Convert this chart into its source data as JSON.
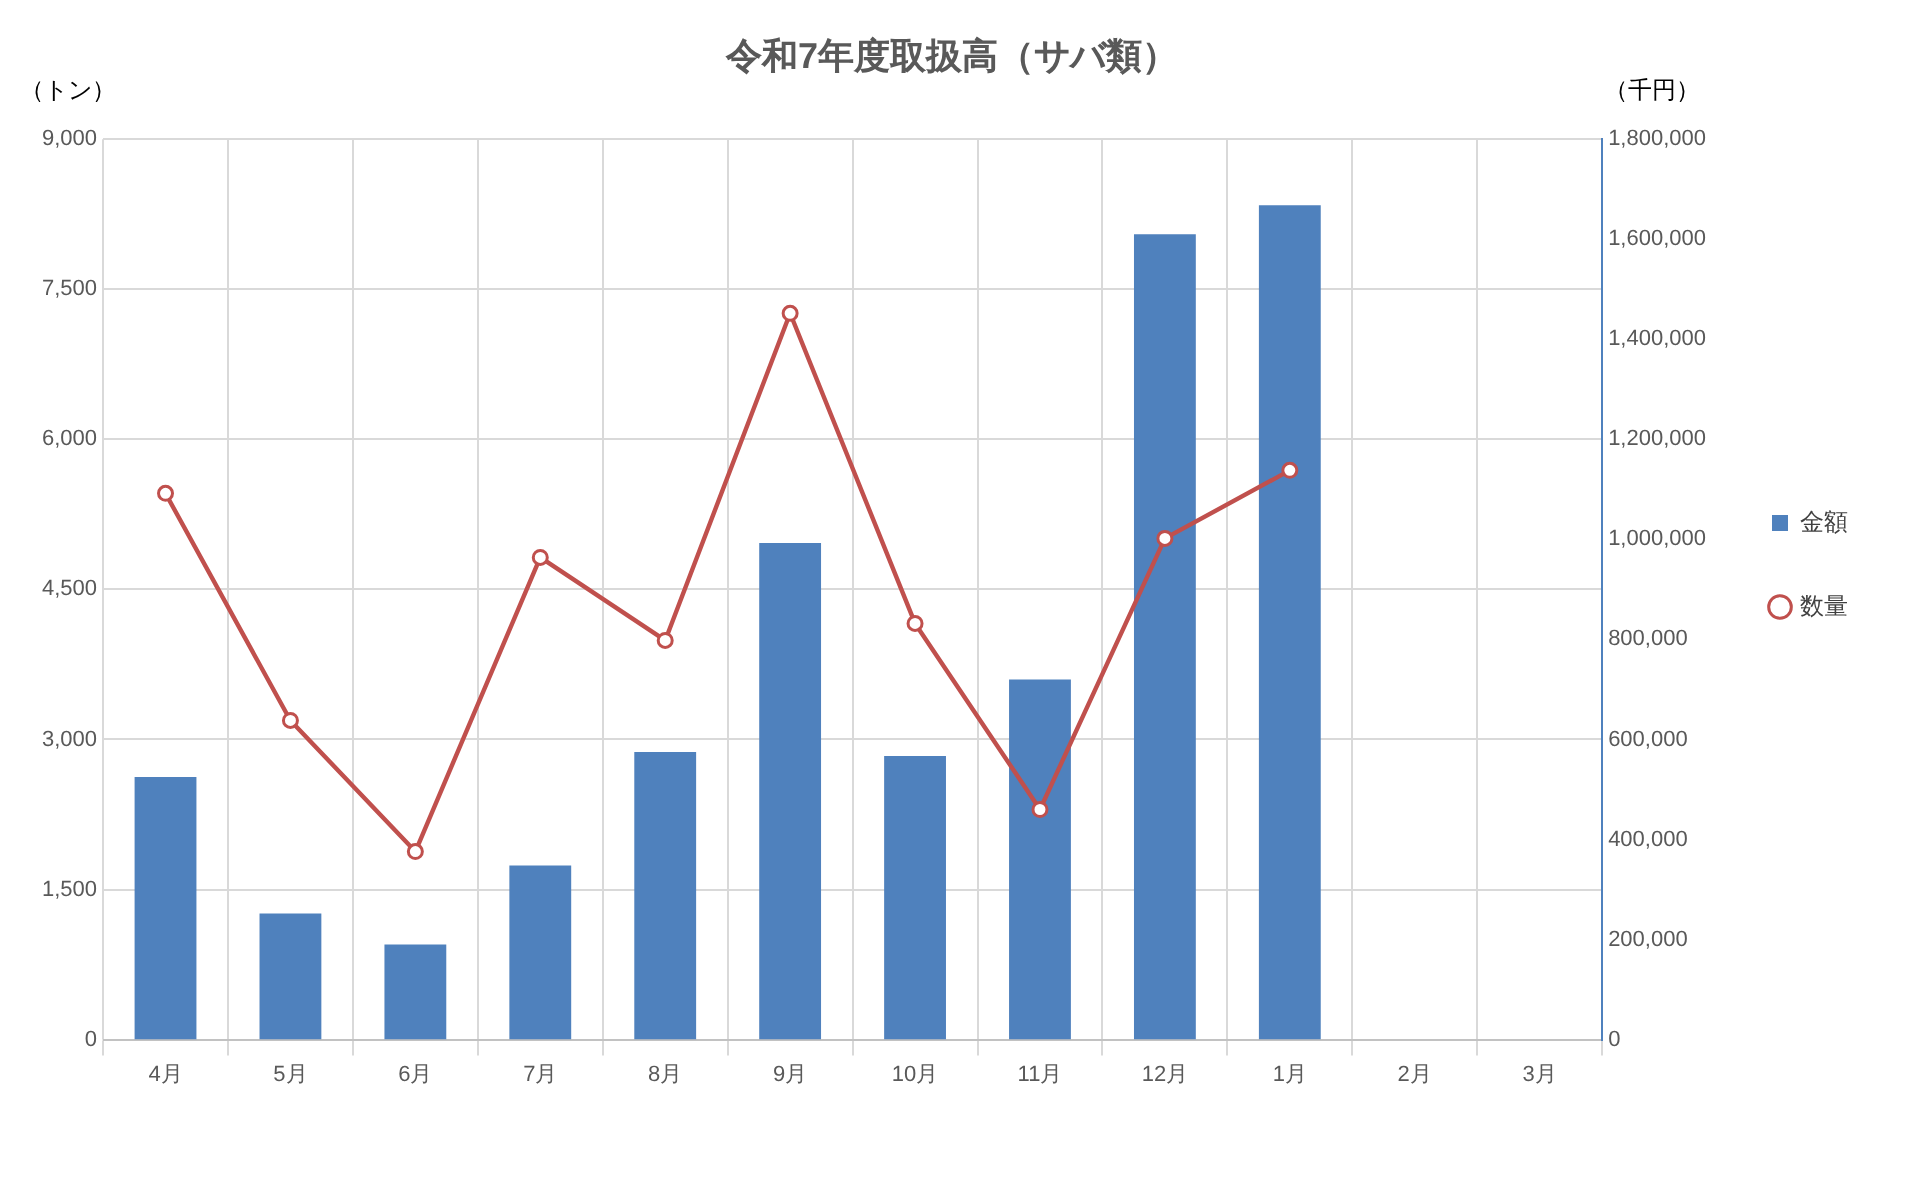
{
  "chart_data": {
    "type": "bar",
    "title": "令和7年度取扱高（サバ類）",
    "ylabel": "（トン）",
    "y2label": "（千円）",
    "categories": [
      "4月",
      "5月",
      "6月",
      "7月",
      "8月",
      "9月",
      "10月",
      "11月",
      "12月",
      "1月",
      "2月",
      "3月"
    ],
    "series": [
      {
        "name": "金額",
        "axis": "y2",
        "color": "#4f81bd",
        "values": [
          525000,
          252000,
          190000,
          348000,
          575000,
          993000,
          567000,
          720000,
          1610000,
          1668000,
          null,
          null
        ]
      },
      {
        "name": "数量",
        "type": "line",
        "axis": "y",
        "color": "#c0504d",
        "marker": "circle",
        "values": [
          5460,
          3190,
          1880,
          4820,
          3990,
          7260,
          4160,
          2300,
          5010,
          5690,
          null,
          null
        ]
      }
    ],
    "ylim": [
      0,
      9000
    ],
    "yticks": [
      0,
      {
        "value": 1500,
        "label": "1,500"
      },
      {
        "value": 3000,
        "label": "3,000"
      },
      {
        "value": 4500,
        "label": "4,500"
      },
      {
        "value": 6000,
        "label": "6,000"
      },
      {
        "value": 7500,
        "label": "7,500"
      },
      {
        "value": 9000,
        "label": "9,000"
      }
    ],
    "y2lim": [
      0,
      1800000
    ],
    "y2ticks": [
      0,
      {
        "value": 200000,
        "label": "200,000"
      },
      {
        "value": 400000,
        "label": "400,000"
      },
      {
        "value": 600000,
        "label": "600,000"
      },
      {
        "value": 800000,
        "label": "800,000"
      },
      {
        "value": 1000000,
        "label": "1,000,000"
      },
      {
        "value": 1200000,
        "label": "1,200,000"
      },
      {
        "value": 1400000,
        "label": "1,400,000"
      },
      {
        "value": 1600000,
        "label": "1,600,000"
      },
      {
        "value": 1800000,
        "label": "1,800,000"
      }
    ],
    "grid": true,
    "legend": "right"
  }
}
